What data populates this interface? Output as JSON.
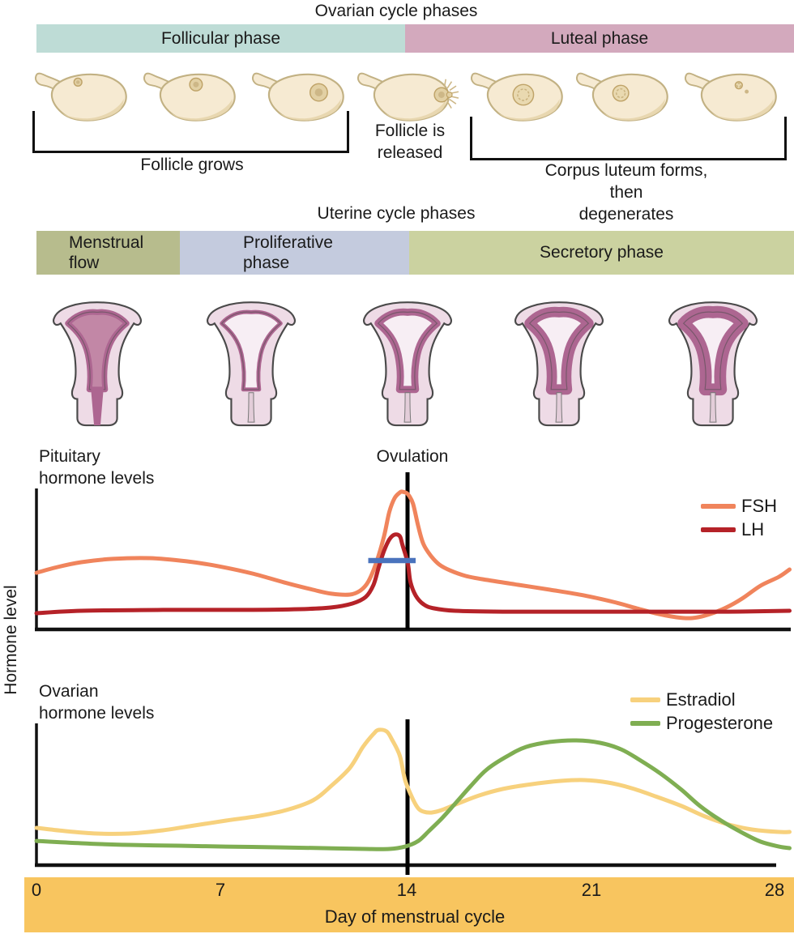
{
  "ovarian_section": {
    "title": "Ovarian cycle phases",
    "phases": [
      {
        "label": "Follicular phase",
        "color": "#bedcd6"
      },
      {
        "label": "Luteal phase",
        "color": "#d3a9bd"
      }
    ],
    "annotations": {
      "follicle_grows": "Follicle grows",
      "follicle_released": [
        "Follicle is",
        "released"
      ],
      "corpus_luteum": [
        "Corpus luteum forms, then",
        "degenerates"
      ]
    },
    "ovary_stages": [
      "primary-follicle",
      "growing-follicle",
      "mature-follicle",
      "follicle-released",
      "corpus-luteum-forms",
      "corpus-luteum",
      "corpus-luteum-degenerated"
    ]
  },
  "uterine_section": {
    "title": "Uterine cycle phases",
    "phases": [
      {
        "label_lines": [
          "Menstrual",
          "flow"
        ],
        "color": "#b7bc8d"
      },
      {
        "label_lines": [
          "Proliferative",
          "phase"
        ],
        "color": "#c4cbde"
      },
      {
        "label_lines": [
          "Secretory phase"
        ],
        "color": "#cbd2a0"
      }
    ],
    "uterus_stages": [
      "menstrual",
      "early-proliferative",
      "late-proliferative",
      "secretory",
      "late-secretory"
    ]
  },
  "shared_y_label": "Hormone level",
  "x_axis": {
    "label": "Day of menstrual cycle",
    "ticks": [
      0,
      7,
      14,
      21,
      28
    ],
    "band_color": "#f8c55f"
  },
  "chart_data": [
    {
      "type": "line",
      "title_lines": [
        "Pituitary",
        "hormone levels"
      ],
      "annotation": "Ovulation",
      "ovulation_day": 14.1,
      "x_range": [
        0,
        28
      ],
      "y_axis": "relative hormone level (unlabeled)",
      "legend_position": "top-right",
      "lh_surge_marker": {
        "day_start": 12.6,
        "day_end": 14.4,
        "level": 48,
        "color": "#4a73bd"
      },
      "series": [
        {
          "name": "FSH",
          "color": "#f0845c",
          "points": [
            [
              0,
              39.5
            ],
            [
              0.8,
              43.5
            ],
            [
              1.7,
              46.9
            ],
            [
              2.9,
              49.2
            ],
            [
              4.3,
              49.7
            ],
            [
              5.7,
              47.5
            ],
            [
              6.9,
              44.1
            ],
            [
              8.2,
              39.0
            ],
            [
              9.4,
              32.8
            ],
            [
              10.5,
              27.7
            ],
            [
              11.2,
              24.9
            ],
            [
              11.9,
              24.3
            ],
            [
              12.3,
              27.1
            ],
            [
              12.6,
              33.3
            ],
            [
              12.9,
              46.3
            ],
            [
              13.2,
              65.0
            ],
            [
              13.4,
              81.9
            ],
            [
              13.6,
              91.5
            ],
            [
              13.8,
              95.5
            ],
            [
              13.9,
              96.0
            ],
            [
              14.1,
              94.4
            ],
            [
              14.3,
              87.6
            ],
            [
              14.5,
              71.8
            ],
            [
              14.7,
              59.3
            ],
            [
              15.0,
              50.8
            ],
            [
              15.3,
              45.2
            ],
            [
              15.7,
              41.2
            ],
            [
              16.3,
              37.3
            ],
            [
              17.1,
              34.5
            ],
            [
              18.3,
              31.1
            ],
            [
              19.5,
              27.7
            ],
            [
              20.8,
              23.7
            ],
            [
              21.9,
              19.2
            ],
            [
              22.8,
              14.7
            ],
            [
              23.5,
              11.3
            ],
            [
              24.3,
              8.5
            ],
            [
              24.9,
              7.9
            ],
            [
              25.5,
              10.2
            ],
            [
              26.2,
              15.3
            ],
            [
              26.8,
              21.5
            ],
            [
              27.5,
              30.5
            ],
            [
              28.2,
              36.7
            ],
            [
              28.6,
              41.8
            ]
          ]
        },
        {
          "name": "LH",
          "color": "#b52228",
          "points": [
            [
              0,
              11.3
            ],
            [
              1.7,
              13.0
            ],
            [
              4.8,
              13.6
            ],
            [
              7.9,
              13.6
            ],
            [
              10.0,
              14.1
            ],
            [
              11.2,
              15.3
            ],
            [
              12.0,
              18.1
            ],
            [
              12.5,
              22.6
            ],
            [
              12.8,
              31.1
            ],
            [
              13.0,
              43.5
            ],
            [
              13.2,
              54.8
            ],
            [
              13.4,
              62.7
            ],
            [
              13.6,
              66.1
            ],
            [
              13.8,
              65.0
            ],
            [
              13.9,
              58.8
            ],
            [
              14.1,
              46.3
            ],
            [
              14.2,
              33.3
            ],
            [
              14.4,
              23.7
            ],
            [
              14.7,
              17.5
            ],
            [
              15.1,
              14.7
            ],
            [
              15.9,
              13.0
            ],
            [
              17.7,
              12.4
            ],
            [
              20.2,
              12.4
            ],
            [
              23.2,
              12.4
            ],
            [
              26.3,
              12.4
            ],
            [
              28.6,
              13.0
            ]
          ]
        }
      ]
    },
    {
      "type": "line",
      "title_lines": [
        "Ovarian",
        "hormone levels"
      ],
      "ovulation_day": 14.1,
      "x_range": [
        0,
        28
      ],
      "y_axis": "relative hormone level (unlabeled)",
      "legend_position": "top-right",
      "series": [
        {
          "name": "Estradiol",
          "color": "#f7d17d",
          "points": [
            [
              0,
              26.3
            ],
            [
              1.1,
              24.0
            ],
            [
              2.3,
              22.3
            ],
            [
              3.5,
              22.3
            ],
            [
              4.8,
              24.6
            ],
            [
              6.0,
              28.0
            ],
            [
              7.2,
              31.4
            ],
            [
              8.5,
              34.9
            ],
            [
              9.5,
              38.9
            ],
            [
              10.5,
              45.7
            ],
            [
              11.2,
              56.0
            ],
            [
              11.9,
              68.6
            ],
            [
              12.4,
              83.4
            ],
            [
              12.8,
              92.6
            ],
            [
              13.0,
              95.4
            ],
            [
              13.3,
              94.3
            ],
            [
              13.5,
              88.6
            ],
            [
              13.8,
              77.1
            ],
            [
              14.0,
              60.0
            ],
            [
              14.3,
              46.3
            ],
            [
              14.5,
              40.0
            ],
            [
              14.7,
              37.7
            ],
            [
              15.0,
              37.1
            ],
            [
              15.4,
              38.9
            ],
            [
              16.0,
              43.4
            ],
            [
              16.8,
              49.1
            ],
            [
              17.7,
              53.7
            ],
            [
              18.8,
              57.1
            ],
            [
              19.9,
              59.4
            ],
            [
              20.8,
              60.0
            ],
            [
              21.7,
              58.3
            ],
            [
              22.6,
              54.3
            ],
            [
              23.5,
              48.6
            ],
            [
              24.5,
              41.7
            ],
            [
              25.4,
              34.3
            ],
            [
              26.3,
              28.6
            ],
            [
              27.2,
              25.1
            ],
            [
              28.2,
              23.4
            ],
            [
              28.6,
              23.4
            ]
          ]
        },
        {
          "name": "Progesterone",
          "color": "#7fae52",
          "points": [
            [
              0,
              17.1
            ],
            [
              1.7,
              15.4
            ],
            [
              3.5,
              14.3
            ],
            [
              5.4,
              13.7
            ],
            [
              7.2,
              13.1
            ],
            [
              9.1,
              12.6
            ],
            [
              10.9,
              12.0
            ],
            [
              12.5,
              11.4
            ],
            [
              13.4,
              11.4
            ],
            [
              14.0,
              13.1
            ],
            [
              14.5,
              17.1
            ],
            [
              14.9,
              24.0
            ],
            [
              15.4,
              33.1
            ],
            [
              15.9,
              43.4
            ],
            [
              16.5,
              56.0
            ],
            [
              17.1,
              67.4
            ],
            [
              17.9,
              77.1
            ],
            [
              18.6,
              83.4
            ],
            [
              19.5,
              86.9
            ],
            [
              20.5,
              88.0
            ],
            [
              21.4,
              86.3
            ],
            [
              22.2,
              81.7
            ],
            [
              22.9,
              74.3
            ],
            [
              23.7,
              64.6
            ],
            [
              24.5,
              53.1
            ],
            [
              25.2,
              41.7
            ],
            [
              26.0,
              31.4
            ],
            [
              26.8,
              22.9
            ],
            [
              27.5,
              16.6
            ],
            [
              28.2,
              13.1
            ],
            [
              28.6,
              12.0
            ]
          ]
        }
      ]
    }
  ]
}
